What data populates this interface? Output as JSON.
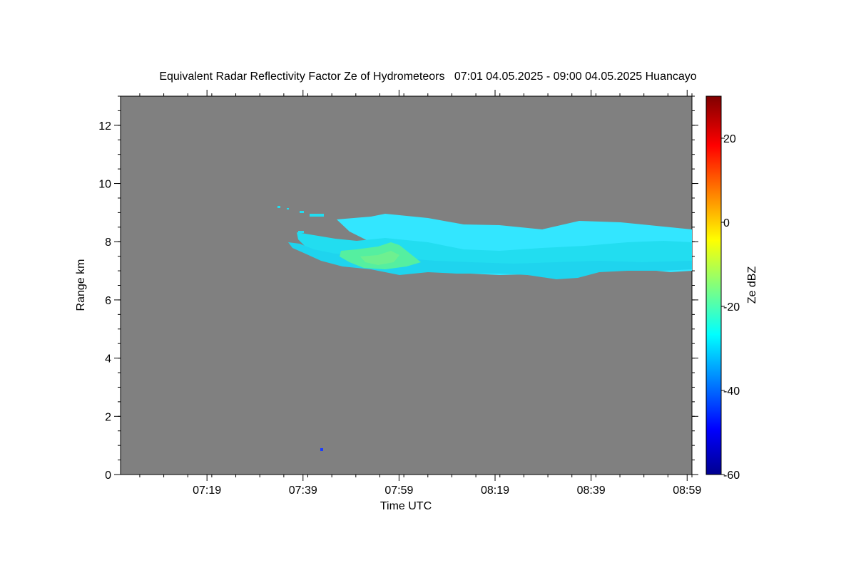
{
  "chart_data": {
    "type": "heatmap",
    "title": "Equivalent Radar Reflectivity Factor Ze of Hydrometeors   07:01 04.05.2025 - 09:00 04.05.2025 Huancayo",
    "xlabel": "Time UTC",
    "ylabel": "Range km",
    "x_ticks": [
      "07:19",
      "07:39",
      "07:59",
      "08:19",
      "08:39",
      "08:59"
    ],
    "y_ticks": [
      "0",
      "2",
      "4",
      "6",
      "8",
      "10",
      "12"
    ],
    "xlim": [
      "07:01",
      "09:00"
    ],
    "ylim": [
      0,
      13
    ],
    "background_color": "#808080",
    "colorbar": {
      "label": "Ze dBZ",
      "range": [
        -60,
        30
      ],
      "ticks": [
        "-60",
        "-40",
        "-20",
        "0",
        "20"
      ],
      "colormap": "jet"
    },
    "echo_layers": [
      {
        "description_only": false,
        "start": "07:52",
        "end": "09:00",
        "top_km": 8.9,
        "base_km": 7.3,
        "ze_dbz": -28
      },
      {
        "description_only": false,
        "start": "07:46",
        "end": "09:00",
        "top_km": 8.6,
        "base_km": 7.0,
        "ze_dbz": -25
      },
      {
        "description_only": false,
        "start": "07:37",
        "end": "09:00",
        "top_km": 8.1,
        "base_km": 6.8,
        "ze_dbz": -20
      },
      {
        "description_only": false,
        "start": "07:44",
        "end": "08:05",
        "top_km": 7.8,
        "base_km": 7.0,
        "ze_dbz": -15
      }
    ],
    "isolated_points": [
      {
        "time": "07:42",
        "range_km": 0.75,
        "ze_dbz": -45
      }
    ],
    "grid": false
  }
}
